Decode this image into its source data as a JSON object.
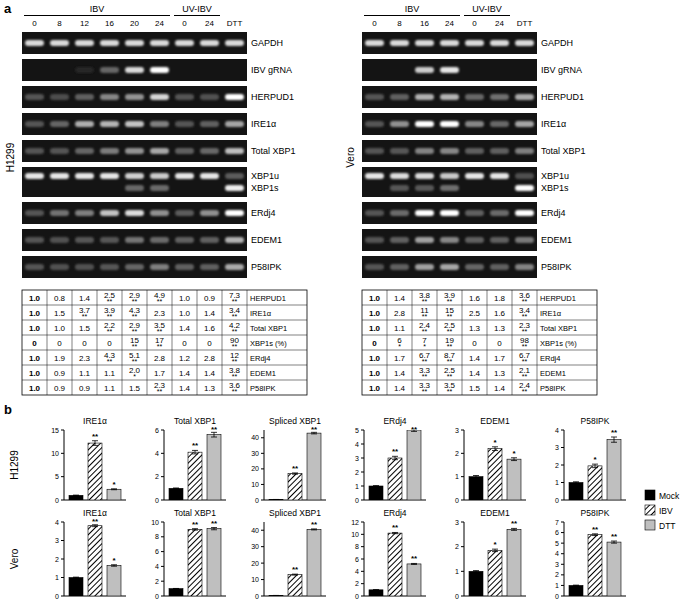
{
  "panel_a": {
    "label": "a",
    "blots": [
      {
        "cell_line": "H1299",
        "groups": [
          {
            "name": "IBV",
            "lanes": [
              "0",
              "8",
              "12",
              "16",
              "20",
              "24"
            ]
          },
          {
            "name": "UV-IBV",
            "lanes": [
              "0",
              "24"
            ]
          }
        ],
        "extra_lane": "DTT",
        "gel_rows": [
          {
            "label": "GAPDH"
          },
          {
            "label": "IBV gRNA",
            "signal": [
              0,
              0,
              0.15,
              0.4,
              0.85,
              1,
              0,
              0,
              0
            ]
          },
          {
            "label": "HERPUD1"
          },
          {
            "label": "IRE1α"
          },
          {
            "label": "Total XBP1"
          },
          {
            "label": "XBP1u",
            "second_label": "XBP1s"
          },
          {
            "label": "ERdj4"
          },
          {
            "label": "EDEM1"
          },
          {
            "label": "P58IPK"
          }
        ],
        "table": {
          "rows": [
            {
              "label": "HERPUD1",
              "values": [
                "1.0",
                "0.8",
                "1.4",
                "2.5",
                "2.9",
                "4.9",
                "1.0",
                "0.9",
                "7.3"
              ],
              "sig": [
                null,
                null,
                null,
                "**",
                "**",
                "**",
                null,
                null,
                "**"
              ]
            },
            {
              "label": "IRE1α",
              "values": [
                "1.0",
                "1.5",
                "3.7",
                "3.9",
                "4.3",
                "2.3",
                "1.0",
                "1.4",
                "3.4"
              ],
              "sig": [
                null,
                null,
                "**",
                "**",
                "**",
                null,
                null,
                null,
                "**"
              ]
            },
            {
              "label": "Total XBP1",
              "values": [
                "1.0",
                "1.0",
                "1.5",
                "2.2",
                "2.9",
                "3.5",
                "1.4",
                "1.6",
                "4.2"
              ],
              "sig": [
                null,
                null,
                null,
                "**",
                "**",
                "**",
                null,
                null,
                "**"
              ]
            },
            {
              "label": "XBP1s (%)",
              "values": [
                "0",
                "0",
                "0",
                "0",
                "15",
                "17",
                "0",
                "0",
                "90"
              ],
              "sig": [
                null,
                null,
                null,
                null,
                "**",
                "**",
                null,
                null,
                "**"
              ]
            },
            {
              "label": "ERdj4",
              "values": [
                "1.0",
                "1.9",
                "2.3",
                "4.3",
                "5.1",
                "2.8",
                "1.2",
                "2.8",
                "12"
              ],
              "sig": [
                null,
                null,
                null,
                "**",
                "**",
                null,
                null,
                null,
                "**"
              ]
            },
            {
              "label": "EDEM1",
              "values": [
                "1.0",
                "0.9",
                "1.1",
                "1.1",
                "2.0",
                "1.7",
                "1.4",
                "1.4",
                "3.8"
              ],
              "sig": [
                null,
                null,
                null,
                null,
                "*",
                null,
                null,
                null,
                "**"
              ]
            },
            {
              "label": "P58IPK",
              "values": [
                "1.0",
                "0.9",
                "0.9",
                "1.1",
                "1.5",
                "2.3",
                "1.4",
                "1.3",
                "3.6"
              ],
              "sig": [
                null,
                null,
                null,
                null,
                null,
                "**",
                null,
                null,
                "**"
              ]
            }
          ]
        }
      },
      {
        "cell_line": "Vero",
        "groups": [
          {
            "name": "IBV",
            "lanes": [
              "0",
              "8",
              "16",
              "24"
            ]
          },
          {
            "name": "UV-IBV",
            "lanes": [
              "0",
              "24"
            ]
          }
        ],
        "extra_lane": "DTT",
        "gel_rows": [
          {
            "label": "GAPDH"
          },
          {
            "label": "IBV gRNA",
            "signal": [
              0,
              0,
              0.8,
              0.9,
              0,
              0,
              0
            ]
          },
          {
            "label": "HERPUD1"
          },
          {
            "label": "IRE1α"
          },
          {
            "label": "Total XBP1"
          },
          {
            "label": "XBP1u",
            "second_label": "XBP1s"
          },
          {
            "label": "ERdj4"
          },
          {
            "label": "EDEM1"
          },
          {
            "label": "P58IPK"
          }
        ],
        "table": {
          "rows": [
            {
              "label": "HERPUD1",
              "values": [
                "1.0",
                "1.4",
                "3.8",
                "3.9",
                "1.6",
                "1.8",
                "3.6"
              ],
              "sig": [
                null,
                null,
                "**",
                "**",
                null,
                null,
                "**"
              ]
            },
            {
              "label": "IRE1α",
              "values": [
                "1.0",
                "2.8",
                "11",
                "15",
                "2.5",
                "1.6",
                "3.4"
              ],
              "sig": [
                null,
                null,
                "**",
                "**",
                null,
                null,
                "**"
              ]
            },
            {
              "label": "Total XBP1",
              "values": [
                "1.0",
                "1.1",
                "2.4",
                "2.5",
                "1.3",
                "1.3",
                "2.3"
              ],
              "sig": [
                null,
                null,
                "**",
                "**",
                null,
                null,
                "**"
              ]
            },
            {
              "label": "XBP1s (%)",
              "values": [
                "0",
                "6",
                "7",
                "19",
                "0",
                "0",
                "98"
              ],
              "sig": [
                null,
                "*",
                "*",
                "**",
                null,
                null,
                "**"
              ]
            },
            {
              "label": "ERdj4",
              "values": [
                "1.0",
                "1.7",
                "6.7",
                "8.7",
                "1.4",
                "1.7",
                "6.7"
              ],
              "sig": [
                null,
                null,
                "**",
                "**",
                null,
                null,
                "**"
              ]
            },
            {
              "label": "EDEM1",
              "values": [
                "1.0",
                "1.4",
                "3.3",
                "2.5",
                "1.4",
                "1.3",
                "2.1"
              ],
              "sig": [
                null,
                null,
                "**",
                "**",
                null,
                null,
                "**"
              ]
            },
            {
              "label": "P58IPK",
              "values": [
                "1.0",
                "1.4",
                "3.3",
                "3.5",
                "1.5",
                "1.4",
                "2.4"
              ],
              "sig": [
                null,
                null,
                "**",
                "**",
                null,
                null,
                "**"
              ]
            }
          ]
        }
      }
    ]
  },
  "panel_b": {
    "label": "b",
    "rows": [
      "H1299",
      "Vero"
    ],
    "legend_entries": [
      {
        "name": "Mock",
        "color": "#000000"
      },
      {
        "name": "IBV",
        "color": "#000000"
      },
      {
        "name": "DTT",
        "color": "#bfbfbf"
      }
    ]
  },
  "chart_data": [
    {
      "type": "bar",
      "title": "IRE1α",
      "ylim": [
        0,
        15
      ],
      "yticks": [
        0,
        5,
        10,
        15
      ],
      "values": [
        1,
        12.2,
        2.3
      ],
      "errors": [
        0.05,
        0.5,
        0.1
      ],
      "significance": [
        null,
        "**",
        "*"
      ]
    },
    {
      "type": "bar",
      "title": "Total XBP1",
      "ylim": [
        0,
        6
      ],
      "yticks": [
        0,
        2,
        4,
        6
      ],
      "values": [
        1,
        4.1,
        5.6
      ],
      "errors": [
        0.03,
        0.15,
        0.2
      ],
      "significance": [
        null,
        "**",
        "**"
      ]
    },
    {
      "type": "bar",
      "title": "Spliced XBP1",
      "ylim": [
        0,
        45
      ],
      "yticks": [
        0,
        10,
        20,
        30,
        40
      ],
      "values": [
        0.3,
        17,
        43
      ],
      "errors": [
        0.05,
        0.4,
        0.5
      ],
      "significance": [
        null,
        "**",
        "**"
      ]
    },
    {
      "type": "bar",
      "title": "ERdj4",
      "ylim": [
        0,
        5
      ],
      "yticks": [
        0,
        1,
        2,
        3,
        4,
        5
      ],
      "values": [
        1,
        3,
        5
      ],
      "errors": [
        0.03,
        0.12,
        0.1
      ],
      "significance": [
        null,
        "**",
        "**"
      ]
    },
    {
      "type": "bar",
      "title": "EDEM1",
      "ylim": [
        0,
        3
      ],
      "yticks": [
        0,
        1,
        2,
        3
      ],
      "values": [
        1,
        2.2,
        1.75
      ],
      "errors": [
        0.05,
        0.08,
        0.06
      ],
      "significance": [
        null,
        "*",
        "*"
      ]
    },
    {
      "type": "bar",
      "title": "P58IPK",
      "ylim": [
        0,
        4
      ],
      "yticks": [
        0,
        1,
        2,
        3,
        4
      ],
      "values": [
        1,
        1.95,
        3.45
      ],
      "errors": [
        0.04,
        0.1,
        0.15
      ],
      "significance": [
        null,
        "*",
        "**"
      ]
    },
    {
      "type": "bar",
      "title": "IRE1α",
      "ylim": [
        0,
        4
      ],
      "yticks": [
        0,
        1,
        2,
        3,
        4
      ],
      "values": [
        1,
        3.8,
        1.65
      ],
      "errors": [
        0.02,
        0.05,
        0.04
      ],
      "significance": [
        null,
        "**",
        "*"
      ]
    },
    {
      "type": "bar",
      "title": "Total XBP1",
      "ylim": [
        0,
        10
      ],
      "yticks": [
        0,
        2,
        4,
        6,
        8,
        10
      ],
      "values": [
        1,
        9,
        9.1
      ],
      "errors": [
        0.02,
        0.1,
        0.15
      ],
      "significance": [
        null,
        "**",
        "**"
      ]
    },
    {
      "type": "bar",
      "title": "Spliced XBP1",
      "ylim": [
        0,
        45
      ],
      "yticks": [
        0,
        10,
        20,
        30,
        40
      ],
      "values": [
        0.3,
        13,
        40.5
      ],
      "errors": [
        0.05,
        0.3,
        0.3
      ],
      "significance": [
        null,
        "**",
        "**"
      ]
    },
    {
      "type": "bar",
      "title": "ERdj4",
      "ylim": [
        0,
        12
      ],
      "yticks": [
        0,
        2,
        4,
        6,
        8,
        10,
        12
      ],
      "values": [
        1,
        10.2,
        5.2
      ],
      "errors": [
        0.03,
        0.1,
        0.08
      ],
      "significance": [
        null,
        "**",
        "**"
      ]
    },
    {
      "type": "bar",
      "title": "EDEM1",
      "ylim": [
        0,
        3
      ],
      "yticks": [
        0,
        1,
        2,
        3
      ],
      "values": [
        1,
        1.85,
        2.7
      ],
      "errors": [
        0.03,
        0.05,
        0.04
      ],
      "significance": [
        null,
        "*",
        "**"
      ]
    },
    {
      "type": "bar",
      "title": "P58IPK",
      "ylim": [
        0,
        7
      ],
      "yticks": [
        0,
        1,
        2,
        3,
        4,
        5,
        6,
        7
      ],
      "values": [
        1,
        5.8,
        5.1
      ],
      "errors": [
        0.03,
        0.08,
        0.1
      ],
      "significance": [
        null,
        "**",
        "**"
      ]
    }
  ]
}
